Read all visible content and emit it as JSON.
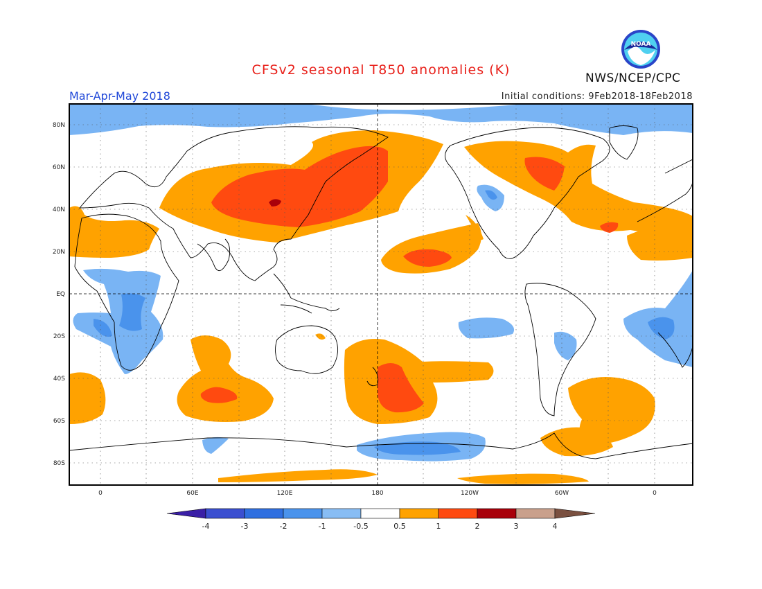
{
  "header": {
    "title": "CFSv2 seasonal T850 anomalies (K)",
    "season": "Mar-Apr-May 2018",
    "initial_conditions": "Initial conditions: 9Feb2018-18Feb2018",
    "agency": "NWS/NCEP/CPC",
    "logo_text": "NOAA"
  },
  "axes": {
    "lat_labels": [
      "80N",
      "60N",
      "40N",
      "20N",
      "EQ",
      "20S",
      "40S",
      "60S",
      "80S"
    ],
    "lon_labels": [
      "0",
      "60E",
      "120E",
      "180",
      "120W",
      "60W",
      "0"
    ]
  },
  "colorbar": {
    "labels": [
      "-4",
      "-3",
      "-2",
      "-1",
      "-0.5",
      "0.5",
      "1",
      "2",
      "3",
      "4"
    ],
    "colors": [
      "#3a1fa6",
      "#3b4fd0",
      "#2f6fe0",
      "#4a93ec",
      "#88bdf4",
      "#ffffff",
      "#ffa200",
      "#ff4a10",
      "#a8000a",
      "#c9a08c",
      "#7a5040"
    ]
  },
  "colors": {
    "warm_1": "#ffa200",
    "warm_2": "#ff4a10",
    "warm_3": "#a8000a",
    "cool_1": "#79b4f4",
    "cool_2": "#4a93ec"
  }
}
